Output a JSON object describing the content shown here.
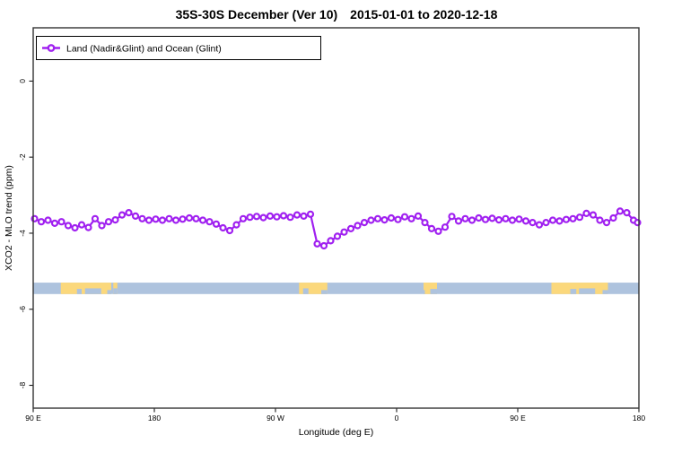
{
  "title": {
    "part1": "35S-30S December (Ver 10)",
    "part2": "2015-01-01 to 2020-12-18"
  },
  "legend": {
    "label": "Land (Nadir&Glint) and Ocean (Glint)"
  },
  "colors": {
    "series": "#A020F0",
    "marker_fill": "#FFFFFF",
    "ocean": "#AEC3DE",
    "land": "#FBD87C",
    "plot_border": "#333333",
    "tick": "#000000"
  },
  "chart_data": {
    "type": "line",
    "title": "35S-30S December (Ver 10)   2015-01-01 to 2020-12-18",
    "xlabel": "Longitude (deg E)",
    "ylabel": "XCO2 - MLO trend (ppm)",
    "xlim": [
      90,
      540
    ],
    "ylim": [
      -8.6,
      1.4
    ],
    "grid": false,
    "legend_position": "top-left",
    "x_ticks": [
      {
        "value": 90,
        "label": "90 E"
      },
      {
        "value": 180,
        "label": "180"
      },
      {
        "value": 270,
        "label": "90 W"
      },
      {
        "value": 360,
        "label": "0"
      },
      {
        "value": 450,
        "label": "90 E"
      },
      {
        "value": 540,
        "label": "180"
      }
    ],
    "y_ticks": [
      {
        "value": 0,
        "label": "0"
      },
      {
        "value": -2,
        "label": "-2"
      },
      {
        "value": -4,
        "label": "-4"
      },
      {
        "value": -6,
        "label": "-6"
      },
      {
        "value": -8,
        "label": "-8"
      }
    ],
    "series": [
      {
        "name": "Land (Nadir&Glint) and Ocean (Glint)",
        "marker": "open-circle",
        "color": "#A020F0",
        "points": [
          [
            91,
            -3.62
          ],
          [
            96,
            -3.7
          ],
          [
            101,
            -3.66
          ],
          [
            106,
            -3.74
          ],
          [
            111,
            -3.7
          ],
          [
            116,
            -3.8
          ],
          [
            121,
            -3.86
          ],
          [
            126,
            -3.78
          ],
          [
            131,
            -3.85
          ],
          [
            136,
            -3.62
          ],
          [
            141,
            -3.8
          ],
          [
            146,
            -3.7
          ],
          [
            151,
            -3.65
          ],
          [
            156,
            -3.52
          ],
          [
            161,
            -3.46
          ],
          [
            166,
            -3.55
          ],
          [
            171,
            -3.62
          ],
          [
            176,
            -3.66
          ],
          [
            181,
            -3.63
          ],
          [
            186,
            -3.66
          ],
          [
            191,
            -3.62
          ],
          [
            196,
            -3.66
          ],
          [
            201,
            -3.63
          ],
          [
            206,
            -3.6
          ],
          [
            211,
            -3.62
          ],
          [
            216,
            -3.66
          ],
          [
            221,
            -3.7
          ],
          [
            226,
            -3.76
          ],
          [
            231,
            -3.86
          ],
          [
            236,
            -3.93
          ],
          [
            241,
            -3.78
          ],
          [
            246,
            -3.62
          ],
          [
            251,
            -3.58
          ],
          [
            256,
            -3.56
          ],
          [
            261,
            -3.59
          ],
          [
            266,
            -3.55
          ],
          [
            271,
            -3.57
          ],
          [
            276,
            -3.54
          ],
          [
            281,
            -3.58
          ],
          [
            286,
            -3.52
          ],
          [
            291,
            -3.55
          ],
          [
            296,
            -3.5
          ],
          [
            301,
            -4.28
          ],
          [
            306,
            -4.33
          ],
          [
            311,
            -4.2
          ],
          [
            316,
            -4.08
          ],
          [
            321,
            -3.97
          ],
          [
            326,
            -3.88
          ],
          [
            331,
            -3.8
          ],
          [
            336,
            -3.72
          ],
          [
            341,
            -3.66
          ],
          [
            346,
            -3.62
          ],
          [
            351,
            -3.65
          ],
          [
            356,
            -3.6
          ],
          [
            361,
            -3.64
          ],
          [
            366,
            -3.57
          ],
          [
            371,
            -3.62
          ],
          [
            376,
            -3.55
          ],
          [
            381,
            -3.72
          ],
          [
            386,
            -3.88
          ],
          [
            391,
            -3.95
          ],
          [
            396,
            -3.84
          ],
          [
            401,
            -3.56
          ],
          [
            406,
            -3.68
          ],
          [
            411,
            -3.62
          ],
          [
            416,
            -3.66
          ],
          [
            421,
            -3.6
          ],
          [
            426,
            -3.64
          ],
          [
            431,
            -3.61
          ],
          [
            436,
            -3.65
          ],
          [
            441,
            -3.62
          ],
          [
            446,
            -3.66
          ],
          [
            451,
            -3.63
          ],
          [
            456,
            -3.68
          ],
          [
            461,
            -3.72
          ],
          [
            466,
            -3.78
          ],
          [
            471,
            -3.72
          ],
          [
            476,
            -3.66
          ],
          [
            481,
            -3.68
          ],
          [
            486,
            -3.64
          ],
          [
            491,
            -3.62
          ],
          [
            496,
            -3.58
          ],
          [
            501,
            -3.48
          ],
          [
            506,
            -3.52
          ],
          [
            511,
            -3.66
          ],
          [
            516,
            -3.72
          ],
          [
            521,
            -3.6
          ],
          [
            526,
            -3.42
          ],
          [
            531,
            -3.46
          ],
          [
            536,
            -3.66
          ],
          [
            539,
            -3.72
          ]
        ]
      }
    ],
    "surface_strip": {
      "description": "land-ocean longitude strip",
      "y_range": [
        -5.3,
        -5.6
      ],
      "ocean_color": "#AEC3DE",
      "land_color": "#FBD87C",
      "land_patches": [
        {
          "from": 110.5,
          "to": 148,
          "notches": [
            {
              "from": 122.5,
              "to": 126,
              "depth": 0.45
            },
            {
              "from": 128.5,
              "to": 140.5,
              "depth": 0.5
            },
            {
              "from": 145,
              "to": 148,
              "depth": 0.35
            }
          ]
        },
        {
          "from": 149.5,
          "to": 152.5,
          "notches": [
            {
              "from": 149.5,
              "to": 152.5,
              "depth": 0.5
            }
          ]
        },
        {
          "from": 287.5,
          "to": 308.5,
          "notches": [
            {
              "from": 290.5,
              "to": 294.5,
              "depth": 0.5
            },
            {
              "from": 304,
              "to": 308.5,
              "depth": 0.35
            }
          ]
        },
        {
          "from": 380,
          "to": 390,
          "notches": [
            {
              "from": 380,
              "to": 381,
              "depth": 0.35
            },
            {
              "from": 385,
              "to": 390,
              "depth": 0.45
            }
          ]
        },
        {
          "from": 475,
          "to": 517,
          "notches": [
            {
              "from": 489,
              "to": 493.5,
              "depth": 0.45
            },
            {
              "from": 495.5,
              "to": 507.5,
              "depth": 0.5
            },
            {
              "from": 513,
              "to": 517,
              "depth": 0.35
            }
          ]
        }
      ]
    }
  }
}
